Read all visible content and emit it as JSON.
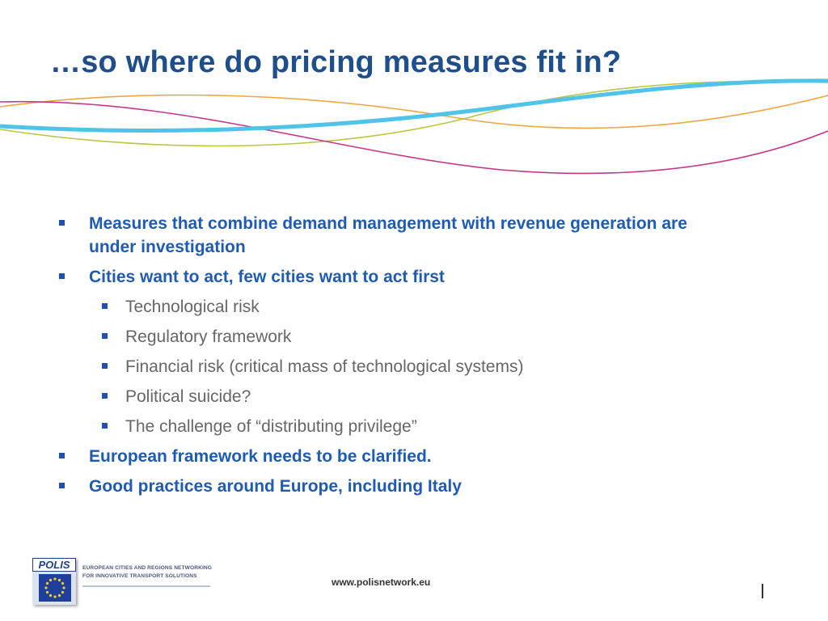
{
  "slide": {
    "title": "…so where do pricing measures fit in?"
  },
  "bullets": [
    {
      "level": 1,
      "text": "Measures that combine demand management with revenue generation are under investigation"
    },
    {
      "level": 1,
      "text": "Cities want to act, few cities want to act first"
    },
    {
      "level": 2,
      "text": "Technological risk"
    },
    {
      "level": 2,
      "text": "Regulatory framework"
    },
    {
      "level": 2,
      "text": "Financial risk (critical mass of technological systems)"
    },
    {
      "level": 2,
      "text": "Political suicide?"
    },
    {
      "level": 2,
      "text": "The challenge of “distributing privilege”"
    },
    {
      "level": 1,
      "text": "European framework needs to be clarified."
    },
    {
      "level": 1,
      "text": "Good practices around Europe, including Italy"
    }
  ],
  "footer": {
    "logo_word": "POLIS",
    "logo_tagline_line1": "EUROPEAN CITIES AND REGIONS NETWORKING",
    "logo_tagline_line2": "FOR INNOVATIVE TRANSPORT SOLUTIONS",
    "website": "www.polisnetwork.eu"
  },
  "colors": {
    "title": "#1f4e8c",
    "level1_text": "#1f5bb0",
    "level2_text": "#666666",
    "wave_blue": "#4fc3e8",
    "wave_orange": "#f0a640",
    "wave_green": "#b8c640",
    "wave_magenta": "#c8368a"
  }
}
